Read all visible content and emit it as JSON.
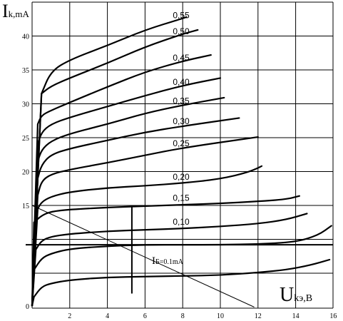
{
  "chart_data": {
    "type": "line",
    "ylabel_main": "I",
    "ylabel_sub": "k,mA",
    "xlabel_main": "U",
    "xlabel_sub": "kэ,B",
    "xlim": [
      0,
      16
    ],
    "ylim": [
      0,
      45
    ],
    "x_ticks": [
      "2",
      "4",
      "6",
      "8",
      "10",
      "12",
      "14",
      "16"
    ],
    "y_ticks": [
      "0",
      "15",
      "20",
      "25",
      "30",
      "35",
      "40"
    ],
    "secondary_curve_label": "I",
    "secondary_curve_label_sub": "Б=0.1mA",
    "series": [
      {
        "name": "0,55",
        "x": [
          0.5,
          1.0,
          2.0,
          4.0,
          6.0,
          8.0,
          8.2
        ],
        "y": [
          31.5,
          34.8,
          36.5,
          38.6,
          40.9,
          42.6,
          42.8
        ]
      },
      {
        "name": "0,50",
        "x": [
          0.5,
          1.0,
          2.0,
          4.0,
          6.0,
          8.0,
          8.8
        ],
        "y": [
          31.5,
          32.6,
          33.8,
          36.0,
          38.4,
          40.3,
          40.9
        ]
      },
      {
        "name": "0,45",
        "x": [
          0.3,
          0.5,
          1.0,
          2.0,
          4.0,
          6.0,
          8.0,
          9.5
        ],
        "y": [
          27.0,
          28.3,
          29.0,
          30.2,
          32.5,
          34.7,
          36.3,
          37.2
        ]
      },
      {
        "name": "0,40",
        "x": [
          0.3,
          0.5,
          1.0,
          2.0,
          4.0,
          6.0,
          8.0,
          10.0
        ],
        "y": [
          24.0,
          25.8,
          27.0,
          28.0,
          29.6,
          31.2,
          32.7,
          33.8
        ]
      },
      {
        "name": "0,35",
        "x": [
          0.3,
          0.5,
          1.0,
          2.0,
          4.0,
          6.0,
          8.0,
          10.2
        ],
        "y": [
          21.5,
          23.2,
          24.5,
          25.6,
          27.0,
          28.6,
          29.8,
          30.9
        ]
      },
      {
        "name": "0,30",
        "x": [
          0.3,
          0.5,
          1.0,
          2.0,
          4.0,
          6.0,
          8.0,
          11.0
        ],
        "y": [
          19.0,
          21.0,
          22.5,
          23.4,
          24.6,
          25.8,
          26.7,
          27.9
        ]
      },
      {
        "name": "0,25",
        "x": [
          0.3,
          0.5,
          1.0,
          2.0,
          4.0,
          6.0,
          8.0,
          12.0
        ],
        "y": [
          16.5,
          18.6,
          19.6,
          20.3,
          21.3,
          22.4,
          23.5,
          25.1
        ]
      },
      {
        "name": "0,20",
        "x": [
          0.3,
          0.5,
          1.0,
          2.0,
          4.0,
          6.0,
          8.0,
          10.0,
          11.5,
          12.2
        ],
        "y": [
          14.5,
          15.5,
          16.3,
          17.0,
          17.6,
          17.9,
          18.3,
          18.9,
          19.9,
          20.8
        ]
      },
      {
        "name": "0,15",
        "x": [
          0.1,
          0.5,
          1.0,
          2.0,
          4.0,
          6.0,
          8.0,
          10.0,
          12.0,
          13.5,
          14.2
        ],
        "y": [
          12.5,
          13.5,
          14.1,
          14.4,
          14.7,
          14.9,
          15.1,
          15.3,
          15.6,
          15.9,
          16.4
        ]
      },
      {
        "name": "0,10",
        "x": [
          0.2,
          0.5,
          1.0,
          2.0,
          4.0,
          6.0,
          8.0,
          10.0,
          12.0,
          13.5,
          14.6
        ],
        "y": [
          8.5,
          9.8,
          10.4,
          10.8,
          11.2,
          11.4,
          11.6,
          11.9,
          12.3,
          12.9,
          13.8
        ]
      },
      {
        "name": "",
        "x": [
          0.1,
          0.5,
          1.0,
          2.0,
          4.0,
          6.0,
          8.0,
          10.0,
          12.0,
          14.0,
          15.2,
          15.9
        ],
        "y": [
          5.5,
          7.2,
          7.9,
          8.6,
          9.0,
          9.2,
          9.2,
          9.2,
          9.3,
          9.6,
          10.6,
          12.0
        ]
      },
      {
        "name": "",
        "x": [
          0.1,
          0.5,
          1.0,
          2.0,
          4.0,
          6.0,
          8.0,
          10.0,
          12.0,
          13.5,
          14.8,
          15.8
        ],
        "y": [
          1.5,
          3.0,
          3.5,
          4.0,
          4.4,
          4.5,
          4.6,
          4.7,
          5.1,
          5.5,
          6.2,
          7.0
        ]
      }
    ],
    "load_line": {
      "x": [
        0,
        11.8
      ],
      "y": [
        15.0,
        0
      ]
    },
    "horizontal_line": {
      "y": 9.2
    },
    "vertical_marker": {
      "x": 5.3,
      "y": [
        2.0,
        15.0
      ]
    }
  }
}
